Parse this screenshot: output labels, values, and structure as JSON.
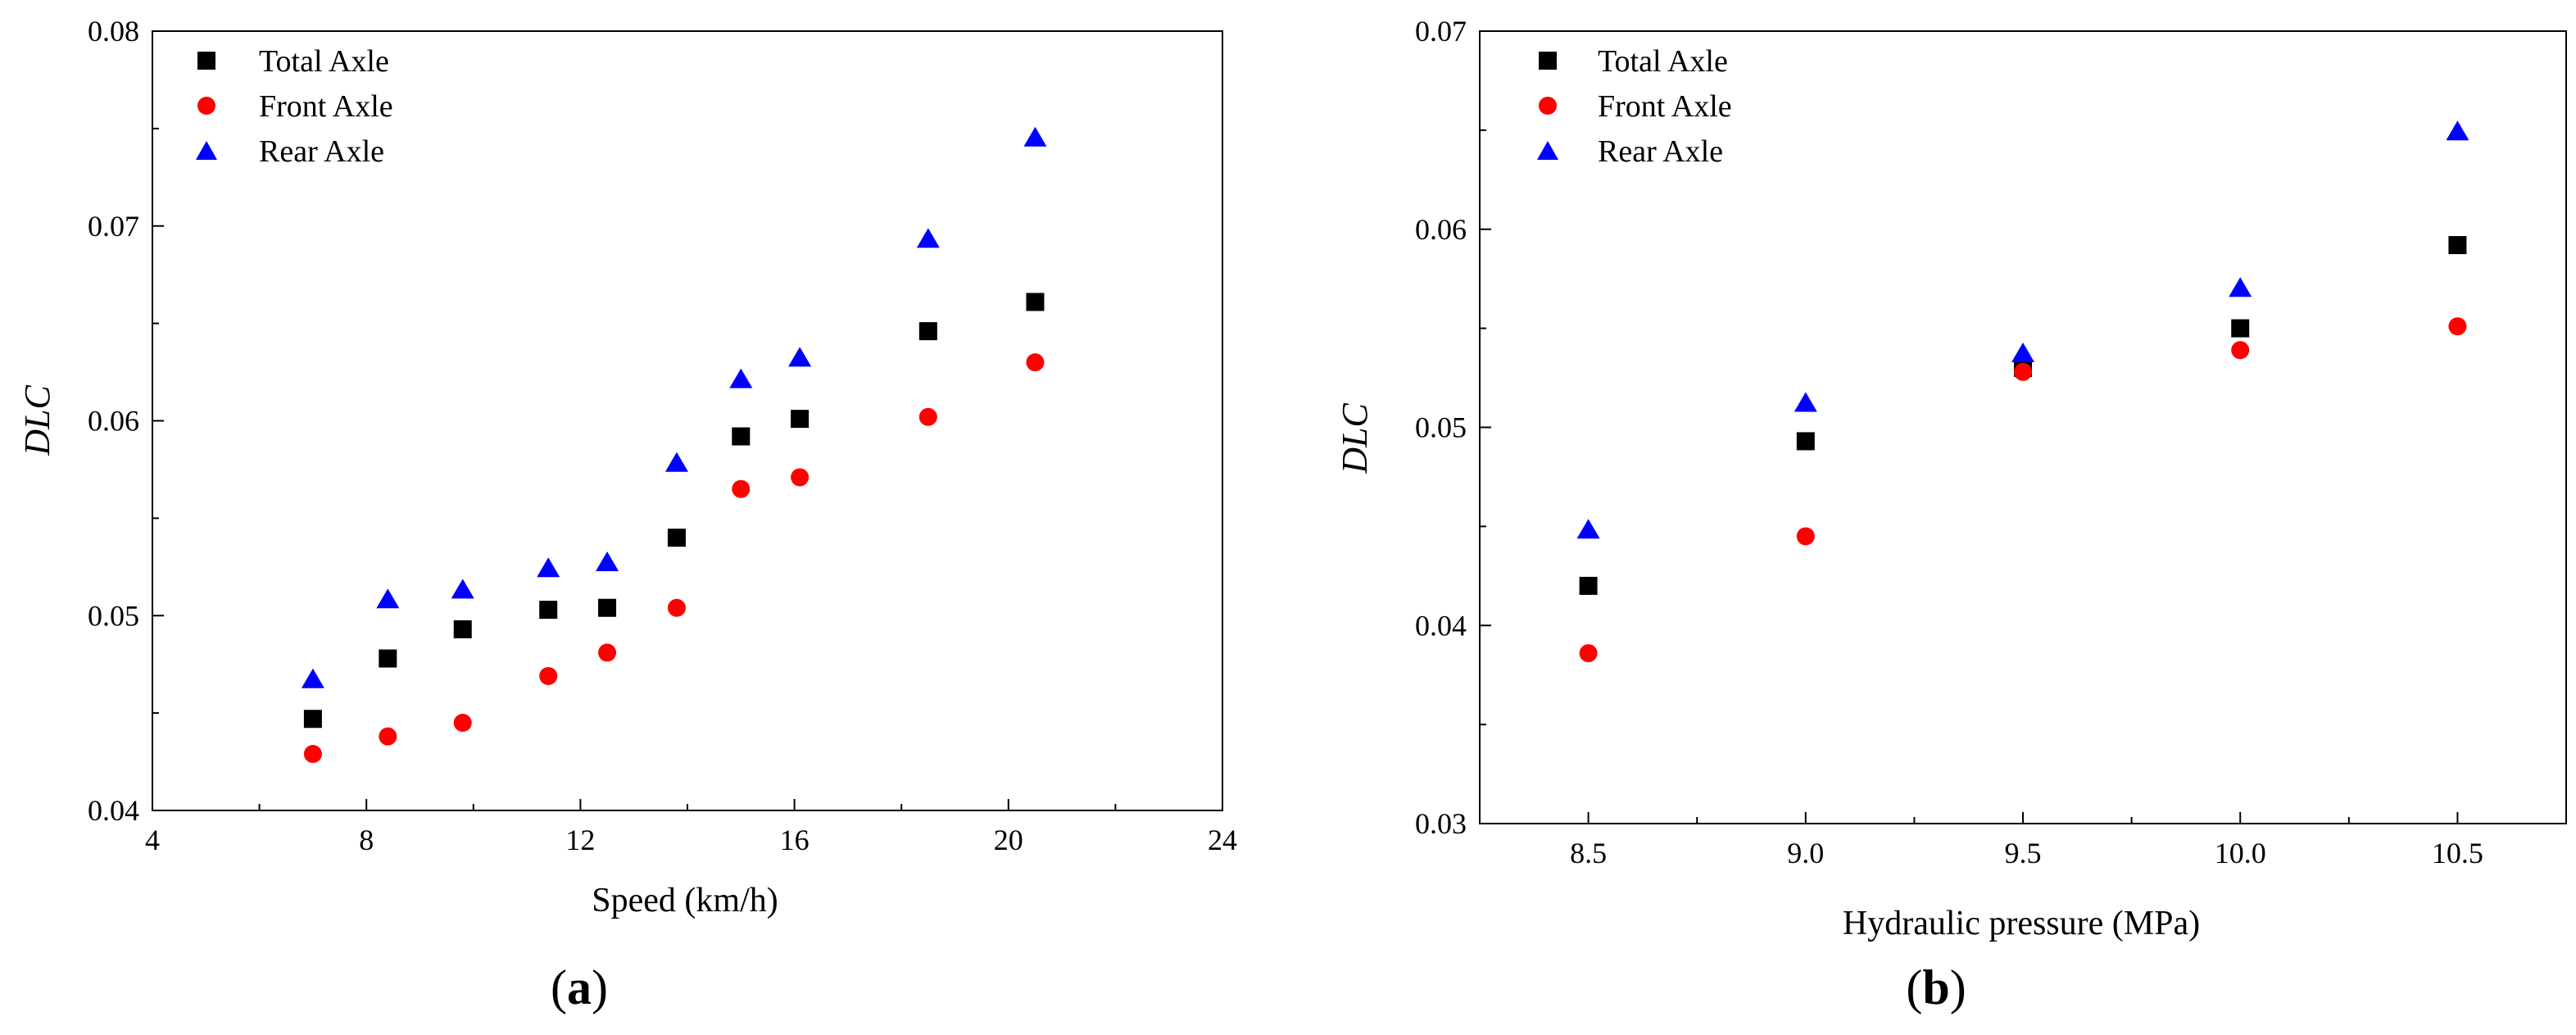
{
  "chart_data": [
    {
      "type": "scatter",
      "panel": "a",
      "panel_label_open": "(",
      "panel_label_letter": "a",
      "panel_label_close": ")",
      "title": "",
      "xlabel": "Speed (km/h)",
      "ylabel": "DLC",
      "xlim": [
        4,
        24
      ],
      "ylim": [
        0.04,
        0.08
      ],
      "xticks": [
        4,
        8,
        12,
        16,
        20,
        24
      ],
      "xtick_labels": [
        "4",
        "8",
        "12",
        "16",
        "20",
        "24"
      ],
      "yticks": [
        0.04,
        0.05,
        0.06,
        0.07,
        0.08
      ],
      "ytick_labels": [
        "0.04",
        "0.05",
        "0.06",
        "0.07",
        "0.08"
      ],
      "legend_position": "top-left",
      "grid": false,
      "series": [
        {
          "name": "Total Axle",
          "marker": "square",
          "color": "#000000",
          "x": [
            7.0,
            8.4,
            9.8,
            11.4,
            12.5,
            13.8,
            15.0,
            16.1,
            18.5,
            20.5
          ],
          "y": [
            0.0447,
            0.0478,
            0.0493,
            0.0503,
            0.0504,
            0.054,
            0.0592,
            0.0601,
            0.0646,
            0.0661
          ]
        },
        {
          "name": "Front Axle",
          "marker": "circle",
          "color": "#ff0000",
          "x": [
            7.0,
            8.4,
            9.8,
            11.4,
            12.5,
            13.8,
            15.0,
            16.1,
            18.5,
            20.5
          ],
          "y": [
            0.0429,
            0.0438,
            0.0445,
            0.0469,
            0.0481,
            0.0504,
            0.0565,
            0.0571,
            0.0602,
            0.063
          ]
        },
        {
          "name": "Rear Axle",
          "marker": "triangle",
          "color": "#0000ff",
          "x": [
            7.0,
            8.4,
            9.8,
            11.4,
            12.5,
            13.8,
            15.0,
            16.1,
            18.5,
            20.5
          ],
          "y": [
            0.0467,
            0.0508,
            0.0513,
            0.0524,
            0.0527,
            0.0578,
            0.0621,
            0.0632,
            0.0693,
            0.0745
          ]
        }
      ]
    },
    {
      "type": "scatter",
      "panel": "b",
      "panel_label_open": "(",
      "panel_label_letter": "b",
      "panel_label_close": ")",
      "title": "",
      "xlabel": "Hydraulic pressure (MPa)",
      "ylabel": "DLC",
      "xlim": [
        8.25,
        10.75
      ],
      "ylim": [
        0.03,
        0.07
      ],
      "xticks": [
        8.5,
        9.0,
        9.5,
        10.0,
        10.5
      ],
      "xtick_labels": [
        "8.5",
        "9.0",
        "9.5",
        "10.0",
        "10.5"
      ],
      "yticks": [
        0.03,
        0.04,
        0.05,
        0.06,
        0.07
      ],
      "ytick_labels": [
        "0.03",
        "0.04",
        "0.05",
        "0.06",
        "0.07"
      ],
      "legend_position": "top-left",
      "grid": false,
      "series": [
        {
          "name": "Total Axle",
          "marker": "square",
          "color": "#000000",
          "x": [
            8.5,
            9.0,
            9.5,
            10.0,
            10.5
          ],
          "y": [
            0.042,
            0.0493,
            0.053,
            0.055,
            0.0592
          ]
        },
        {
          "name": "Front Axle",
          "marker": "circle",
          "color": "#ff0000",
          "x": [
            8.5,
            9.0,
            9.5,
            10.0,
            10.5
          ],
          "y": [
            0.0386,
            0.0445,
            0.0528,
            0.0539,
            0.0551
          ]
        },
        {
          "name": "Rear Axle",
          "marker": "triangle",
          "color": "#0000ff",
          "x": [
            8.5,
            9.0,
            9.5,
            10.0,
            10.5
          ],
          "y": [
            0.0448,
            0.0512,
            0.0537,
            0.057,
            0.0649
          ]
        }
      ]
    }
  ]
}
